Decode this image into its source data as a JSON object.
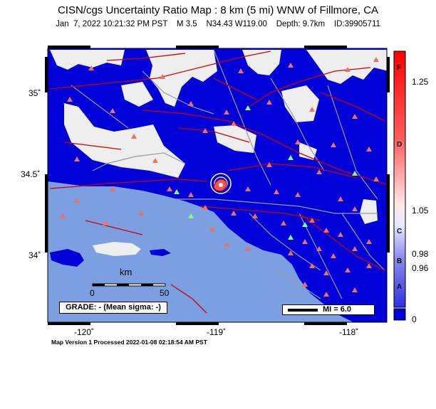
{
  "title": "CISN/cgs Uncertainty Ratio Map : 8 km (5 mi) WNW of Fillmore, CA",
  "subtitle": "Jan  7, 2022 10:21:32 PM PST    M 3.5    N34.43 W119.00    Depth: 9.7km    ID:39905711",
  "footer": "Map Version 1 Processed 2022-01-08 02:18:54 AM PST",
  "grade_box": "GRADE: - (Mean sigma: -)",
  "mi_legend": "MI = 6.0",
  "scale_bar": {
    "unit": "km",
    "start": "0",
    "end": "50"
  },
  "lon_ticks": [
    "-120˚",
    "-119˚",
    "-118˚"
  ],
  "lat_ticks": [
    "35˚",
    "34.5˚",
    "34˚"
  ],
  "colorbar": {
    "values": [
      "1.25",
      "1.05",
      "0.98",
      "0.96",
      "0"
    ],
    "grades": [
      "F",
      "D",
      "C",
      "B",
      "A"
    ]
  },
  "colors": {
    "uncertainty_low": "#0000d8",
    "ocean": "#7b9fe0",
    "land_uncovered": "#eeeeee",
    "faults": "#d00000",
    "stations": "#f07060",
    "stations_alt": "#80ff80",
    "epicenter": "#ff0000"
  }
}
